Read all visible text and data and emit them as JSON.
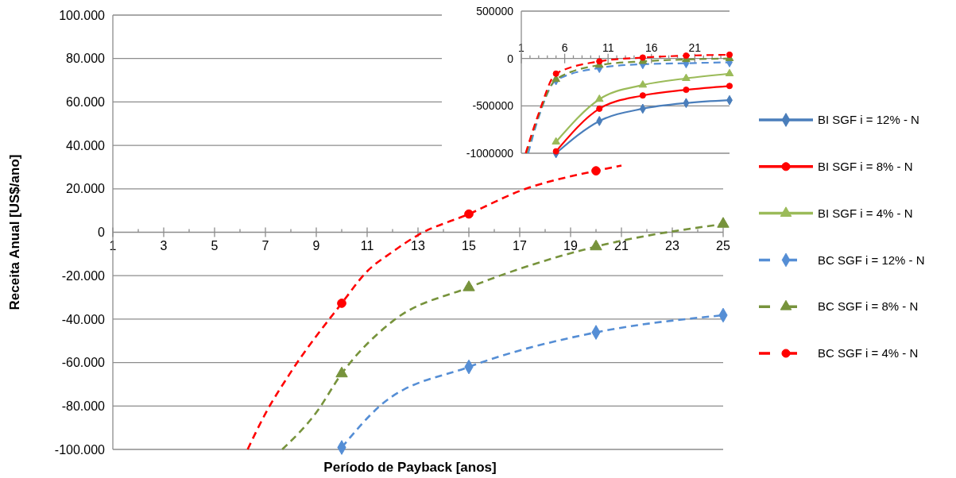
{
  "chart_data": [
    {
      "type": "line",
      "xlabel": "Período de Payback [anos]",
      "ylabel": "Receita Anual [US$/ano]",
      "xlim": [
        1,
        25
      ],
      "ylim": [
        -100000,
        100000
      ],
      "xticks": [
        1,
        {
          "value": 2,
          "label": null
        },
        3,
        {
          "value": 4,
          "label": null
        },
        5,
        {
          "value": 6,
          "label": null
        },
        7,
        {
          "value": 8,
          "label": null
        },
        9,
        {
          "value": 10,
          "label": null
        },
        11,
        {
          "value": 12,
          "label": null
        },
        13,
        {
          "value": 14,
          "label": null
        },
        15,
        {
          "value": 16,
          "label": null
        },
        17,
        {
          "value": 18,
          "label": null
        },
        19,
        {
          "value": 20,
          "label": null
        },
        21,
        {
          "value": 22,
          "label": null
        },
        23,
        {
          "value": 24,
          "label": null
        },
        25
      ],
      "yticks": [
        {
          "value": -100000,
          "label": "-100.000"
        },
        {
          "value": -80000,
          "label": "-80.000"
        },
        {
          "value": -60000,
          "label": "-60.000"
        },
        {
          "value": -40000,
          "label": "-40.000"
        },
        {
          "value": -20000,
          "label": "-20.000"
        },
        0,
        {
          "value": 20000,
          "label": "20.000"
        },
        {
          "value": 40000,
          "label": "40.000"
        },
        {
          "value": 60000,
          "label": "60.000"
        },
        {
          "value": 80000,
          "label": "80.000"
        },
        {
          "value": 100000,
          "label": "100.000"
        }
      ],
      "grid": "y",
      "legend": "right",
      "series": [
        {
          "name": "BC SGF i = 12% - N",
          "type": "line",
          "color": "#558ed5",
          "line_style": "dashed",
          "marker": "none",
          "x": [
            10,
            11.5,
            15,
            20,
            25
          ],
          "values": [
            -99100,
            -80000,
            -62000,
            -46100,
            -38200
          ]
        },
        {
          "type": "scatter",
          "color": "#558ed5",
          "marker": "diamond",
          "x": [
            10,
            15,
            20,
            25
          ],
          "values": [
            -99100,
            -62000,
            -46100,
            -38200
          ]
        },
        {
          "name": "BC SGF i = 8% - N",
          "type": "line",
          "color": "#77933c",
          "line_style": "dashed",
          "marker": "none",
          "x": [
            7.66,
            9,
            10,
            12,
            15,
            20,
            25
          ],
          "values": [
            -100000,
            -83000,
            -65100,
            -41000,
            -25400,
            -6600,
            3800
          ]
        },
        {
          "type": "scatter",
          "color": "#77933c",
          "marker": "triangle",
          "x": [
            10,
            15,
            20,
            25
          ],
          "values": [
            -65100,
            -25400,
            -6600,
            3800
          ]
        },
        {
          "name": "BC SGF i = 4% - N",
          "type": "line",
          "color": "#ff0000",
          "line_style": "dashed",
          "marker": "none",
          "x": [
            6.3,
            7,
            8,
            10,
            11,
            12,
            13,
            15,
            17,
            20,
            21
          ],
          "values": [
            -100000,
            -83500,
            -64400,
            -32700,
            -18000,
            -9000,
            -1300,
            8400,
            19000,
            28300,
            30700
          ]
        },
        {
          "type": "scatter",
          "color": "#ff0000",
          "marker": "circle",
          "x": [
            10,
            15,
            20
          ],
          "values": [
            -32700,
            8400,
            28300
          ]
        }
      ]
    },
    {
      "type": "line",
      "xlim": [
        1,
        25
      ],
      "ylim": [
        -1000000,
        500000
      ],
      "xticks": [
        1,
        {
          "value": 2,
          "label": null
        },
        {
          "value": 3,
          "label": null
        },
        {
          "value": 4,
          "label": null
        },
        {
          "value": 5,
          "label": null
        },
        6,
        {
          "value": 7,
          "label": null
        },
        {
          "value": 8,
          "label": null
        },
        {
          "value": 9,
          "label": null
        },
        {
          "value": 10,
          "label": null
        },
        11,
        {
          "value": 12,
          "label": null
        },
        {
          "value": 13,
          "label": null
        },
        {
          "value": 14,
          "label": null
        },
        {
          "value": 15,
          "label": null
        },
        16,
        {
          "value": 17,
          "label": null
        },
        {
          "value": 18,
          "label": null
        },
        {
          "value": 19,
          "label": null
        },
        {
          "value": 20,
          "label": null
        },
        21,
        {
          "value": 22,
          "label": null
        },
        {
          "value": 23,
          "label": null
        },
        {
          "value": 24,
          "label": null
        },
        {
          "value": 25,
          "label": null
        }
      ],
      "yticks": [
        -1000000,
        -500000,
        0,
        500000
      ],
      "grid": "y",
      "legend": "right",
      "series": [
        {
          "name": "BI SGF i = 12% - N",
          "type": "line",
          "color": "#4a7ebb",
          "line_style": "solid",
          "marker": "diamond",
          "x": [
            5,
            10,
            15,
            20,
            25
          ],
          "values": [
            -1000000,
            -660000,
            -530000,
            -470000,
            -440000
          ]
        },
        {
          "name": "BI SGF i = 8% - N",
          "type": "line",
          "color": "#ff0000",
          "line_style": "solid",
          "marker": "circle",
          "x": [
            5,
            10,
            15,
            20,
            25
          ],
          "values": [
            -980000,
            -530000,
            -390000,
            -330000,
            -290000
          ]
        },
        {
          "name": "BI SGF i = 4% - N",
          "type": "line",
          "color": "#9bbb59",
          "line_style": "solid",
          "marker": "triangle",
          "x": [
            5,
            10,
            15,
            20,
            25
          ],
          "values": [
            -880000,
            -430000,
            -280000,
            -210000,
            -160000
          ]
        },
        {
          "type": "line",
          "color": "#558ed5",
          "line_style": "dashed",
          "marker": "none",
          "x": [
            1.8,
            3,
            5,
            10,
            15,
            20,
            25
          ],
          "values": [
            -1000000,
            -620000,
            -230000,
            -100000,
            -60000,
            -50000,
            -40000
          ]
        },
        {
          "type": "scatter",
          "color": "#558ed5",
          "marker": "diamond",
          "x": [
            5,
            10,
            15,
            20,
            25
          ],
          "values": [
            -230000,
            -100000,
            -60000,
            -50000,
            -40000
          ]
        },
        {
          "type": "line",
          "color": "#77933c",
          "line_style": "dashed",
          "marker": "none",
          "x": [
            1.6,
            3,
            5,
            10,
            15,
            20,
            25
          ],
          "values": [
            -1000000,
            -600000,
            -220000,
            -70000,
            -30000,
            -10000,
            0
          ]
        },
        {
          "type": "scatter",
          "color": "#77933c",
          "marker": "triangle",
          "x": [
            5,
            10,
            15,
            20,
            25
          ],
          "values": [
            -220000,
            -70000,
            -30000,
            -10000,
            0
          ]
        },
        {
          "type": "line",
          "color": "#ff0000",
          "line_style": "dashed",
          "marker": "none",
          "x": [
            1.5,
            3,
            5,
            10,
            15,
            20,
            25
          ],
          "values": [
            -1000000,
            -580000,
            -160000,
            -30000,
            10000,
            30000,
            40000
          ]
        },
        {
          "type": "scatter",
          "color": "#ff0000",
          "marker": "circle",
          "x": [
            5,
            10,
            15,
            20,
            25
          ],
          "values": [
            -160000,
            -30000,
            10000,
            30000,
            40000
          ]
        }
      ]
    }
  ]
}
